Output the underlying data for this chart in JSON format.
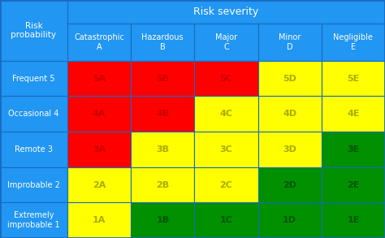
{
  "title": "Risk severity",
  "row_header_title": "Risk\nprobability",
  "col_headers": [
    "Catastrophic\nA",
    "Hazardous\nB",
    "Major\nC",
    "Minor\nD",
    "Negligible\nE"
  ],
  "row_headers": [
    "Frequent 5",
    "Occasional 4",
    "Remote 3",
    "Improbable 2",
    "Extremely\nimprobable 1"
  ],
  "cells": [
    [
      "5A",
      "5B",
      "5C",
      "5D",
      "5E"
    ],
    [
      "4A",
      "4B",
      "4C",
      "4D",
      "4E"
    ],
    [
      "3A",
      "3B",
      "3C",
      "3D",
      "3E"
    ],
    [
      "2A",
      "2B",
      "2C",
      "2D",
      "2E"
    ],
    [
      "1A",
      "1B",
      "1C",
      "1D",
      "1E"
    ]
  ],
  "cell_colors": [
    [
      "#ff0000",
      "#ff0000",
      "#ff0000",
      "#ffff00",
      "#ffff00"
    ],
    [
      "#ff0000",
      "#ff0000",
      "#ffff00",
      "#ffff00",
      "#ffff00"
    ],
    [
      "#ff0000",
      "#ffff00",
      "#ffff00",
      "#ffff00",
      "#009000"
    ],
    [
      "#ffff00",
      "#ffff00",
      "#ffff00",
      "#009000",
      "#009000"
    ],
    [
      "#ffff00",
      "#009000",
      "#009000",
      "#009000",
      "#009000"
    ]
  ],
  "header_bg": "#2196F3",
  "header_text_color": "#ffffff",
  "border_color": "#1a6abf",
  "cell_text_color_on_red": "#cc0000",
  "cell_text_color_on_yellow": "#aaaa00",
  "cell_text_color_on_green": "#005500",
  "background_color": "#2196F3",
  "figsize": [
    4.74,
    2.93
  ],
  "dpi": 100
}
